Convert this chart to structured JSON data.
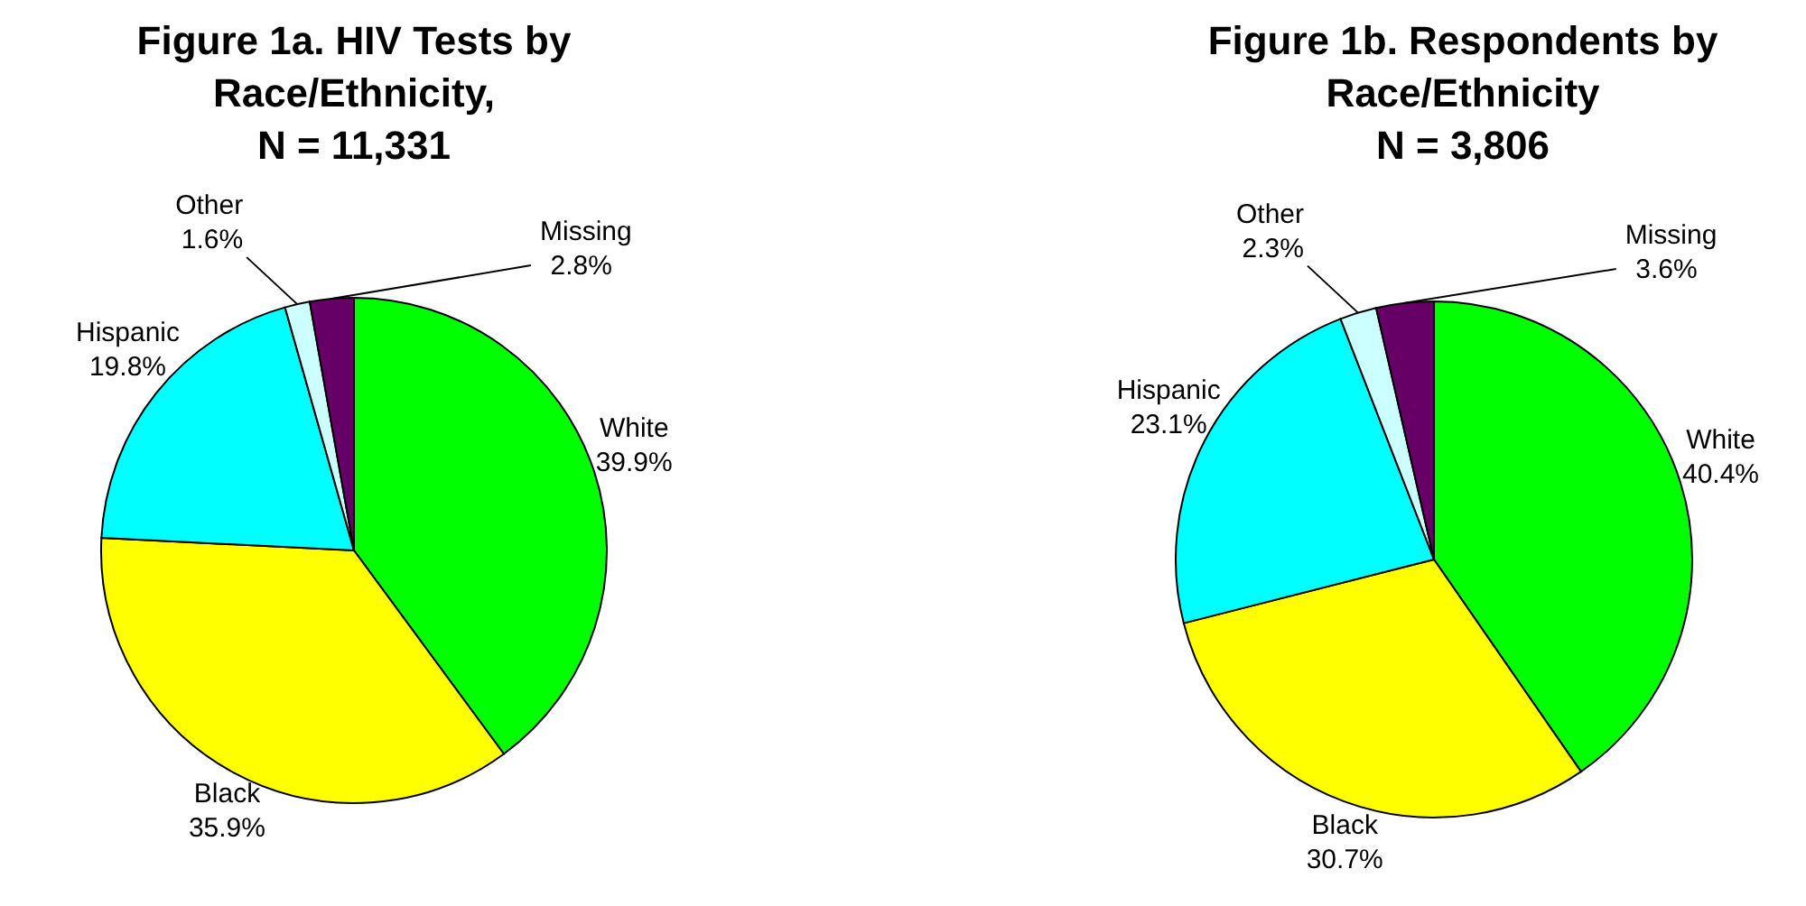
{
  "chart_data": [
    {
      "type": "pie",
      "title": "Figure 1a. HIV Tests by\nRace/Ethnicity,\nN = 11,331",
      "categories": [
        "White",
        "Black",
        "Hispanic",
        "Other",
        "Missing"
      ],
      "values": [
        39.9,
        35.9,
        19.8,
        1.6,
        2.8
      ],
      "colors": [
        "#00ff00",
        "#ffff00",
        "#00ffff",
        "#ccffff",
        "#660066"
      ],
      "value_labels": [
        "39.9%",
        "35.9%",
        "19.8%",
        "1.6%",
        "2.8%"
      ]
    },
    {
      "type": "pie",
      "title": "Figure 1b. Respondents by\nRace/Ethnicity\nN = 3,806",
      "categories": [
        "White",
        "Black",
        "Hispanic",
        "Other",
        "Missing"
      ],
      "values": [
        40.4,
        30.7,
        23.1,
        2.3,
        3.6
      ],
      "colors": [
        "#00ff00",
        "#ffff00",
        "#00ffff",
        "#ccffff",
        "#660066"
      ],
      "value_labels": [
        "40.4%",
        "30.7%",
        "23.1%",
        "2.3%",
        "3.6%"
      ]
    }
  ]
}
